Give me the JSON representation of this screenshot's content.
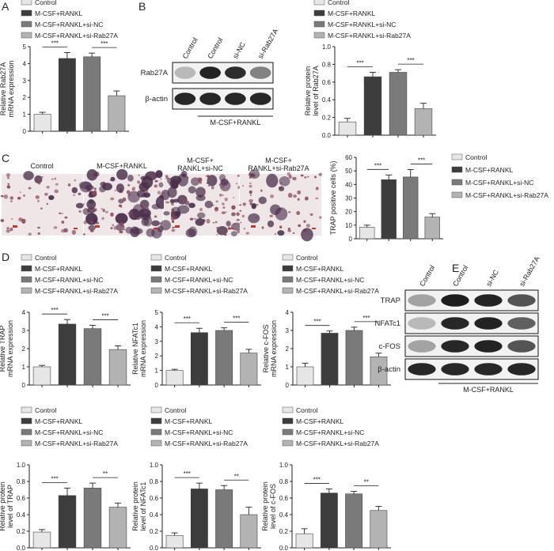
{
  "panel_letters": [
    "A",
    "B",
    "C",
    "D",
    "E"
  ],
  "series_colors": [
    "#e6e6e6",
    "#3d3d3d",
    "#7a7a7a",
    "#b3b3b3"
  ],
  "legend_labels": [
    "Control",
    "M-CSF+RANKL",
    "M-CSF+RANKL+si-NC",
    "M-CSF+RANKL+si-Rab27A"
  ],
  "blot_b": {
    "lanes": [
      "Control",
      "Control",
      "si-NC",
      "si-Rab27A"
    ],
    "rows": [
      "Rab27A",
      "β-actin"
    ],
    "group_label": "M-CSF+RANKL"
  },
  "micro_c": {
    "labels": [
      "Control",
      "M-CSF+RANKL",
      "M-CSF+\nRANKL+si-NC",
      "M-CSF+\nRANKL+si-Rab27A"
    ]
  },
  "blot_e": {
    "lanes": [
      "Control",
      "Control",
      "si-NC",
      "si-Rab27A"
    ],
    "rows": [
      "TRAP",
      "NFATc1",
      "c-FOS",
      "β-actin"
    ],
    "group_label": "M-CSF+RANKL"
  },
  "chart_data": [
    {
      "type": "bar",
      "id": "A",
      "ylabel": "Relative Rab27A\nmRNA expression",
      "ylim": [
        0,
        5
      ],
      "yticks": [
        0,
        1,
        2,
        3,
        4,
        5
      ],
      "tick_labels": [
        "0",
        "1",
        "2",
        "3",
        "4",
        "5"
      ],
      "categories": [
        "Control",
        "M-CSF+RANKL",
        "M-CSF+RANKL+si-NC",
        "M-CSF+RANKL+si-Rab27A"
      ],
      "values": [
        1.0,
        4.3,
        4.4,
        2.1
      ],
      "errors": [
        0.12,
        0.35,
        0.22,
        0.28
      ],
      "significance": [
        {
          "from": 0,
          "to": 1,
          "label": "***"
        },
        {
          "from": 2,
          "to": 3,
          "label": "***"
        }
      ]
    },
    {
      "type": "bar",
      "id": "B",
      "ylabel": "Relative protein\nlevel of Rab27A",
      "ylim": [
        0,
        1.0
      ],
      "yticks": [
        0,
        0.2,
        0.4,
        0.6,
        0.8,
        1.0
      ],
      "tick_labels": [
        "0.0",
        "0.2",
        "0.4",
        "0.6",
        "0.8",
        "1.0"
      ],
      "categories": [
        "Control",
        "M-CSF+RANKL",
        "M-CSF+RANKL+si-NC",
        "M-CSF+RANKL+si-Rab27A"
      ],
      "values": [
        0.15,
        0.66,
        0.71,
        0.3
      ],
      "errors": [
        0.04,
        0.05,
        0.03,
        0.06
      ],
      "significance": [
        {
          "from": 0,
          "to": 1,
          "label": "***"
        },
        {
          "from": 2,
          "to": 3,
          "label": "***"
        }
      ]
    },
    {
      "type": "bar",
      "id": "C",
      "ylabel": "TRAP positive cells (%)",
      "ylim": [
        0,
        60
      ],
      "yticks": [
        0,
        10,
        20,
        30,
        40,
        50,
        60
      ],
      "tick_labels": [
        "0",
        "10",
        "20",
        "30",
        "40",
        "50",
        "60"
      ],
      "categories": [
        "Control",
        "M-CSF+RANKL",
        "M-CSF+RANKL+si-NC",
        "M-CSF+RANKL+si-Rab27A"
      ],
      "values": [
        8.5,
        43.5,
        45.5,
        16.0
      ],
      "errors": [
        1.5,
        3.5,
        5.5,
        2.5
      ],
      "significance": [
        {
          "from": 0,
          "to": 1,
          "label": "***"
        },
        {
          "from": 2,
          "to": 3,
          "label": "***"
        }
      ]
    },
    {
      "type": "bar",
      "id": "D1",
      "ylabel": "Relative TRAP\nmRNA expression",
      "ylim": [
        0,
        4
      ],
      "yticks": [
        0,
        1,
        2,
        3,
        4
      ],
      "tick_labels": [
        "0",
        "1",
        "2",
        "3",
        "4"
      ],
      "categories": [
        "Control",
        "M-CSF+RANKL",
        "M-CSF+RANKL+si-NC",
        "M-CSF+RANKL+si-Rab27A"
      ],
      "values": [
        1.0,
        3.35,
        3.1,
        1.95
      ],
      "errors": [
        0.08,
        0.25,
        0.18,
        0.2
      ],
      "significance": [
        {
          "from": 0,
          "to": 1,
          "label": "***"
        },
        {
          "from": 2,
          "to": 3,
          "label": "***"
        }
      ]
    },
    {
      "type": "bar",
      "id": "D2",
      "ylabel": "Relative NFATc1\nmRNA expression",
      "ylim": [
        0,
        5
      ],
      "yticks": [
        0,
        1,
        2,
        3,
        4,
        5
      ],
      "tick_labels": [
        "0",
        "1",
        "2",
        "3",
        "4",
        "5"
      ],
      "categories": [
        "Control",
        "M-CSF+RANKL",
        "M-CSF+RANKL+si-NC",
        "M-CSF+RANKL+si-Rab27A"
      ],
      "values": [
        1.0,
        3.6,
        3.75,
        2.2
      ],
      "errors": [
        0.08,
        0.3,
        0.18,
        0.25
      ],
      "significance": [
        {
          "from": 0,
          "to": 1,
          "label": "***"
        },
        {
          "from": 2,
          "to": 3,
          "label": "***"
        }
      ]
    },
    {
      "type": "bar",
      "id": "D3",
      "ylabel": "Relative c-FOS\nmRNA expression",
      "ylim": [
        0,
        4
      ],
      "yticks": [
        0,
        1,
        2,
        3,
        4
      ],
      "tick_labels": [
        "0",
        "1",
        "2",
        "3",
        "4"
      ],
      "categories": [
        "Control",
        "M-CSF+RANKL",
        "M-CSF+RANKL+si-NC",
        "M-CSF+RANKL+si-Rab27A"
      ],
      "values": [
        1.0,
        2.85,
        3.0,
        1.55
      ],
      "errors": [
        0.2,
        0.12,
        0.18,
        0.2
      ],
      "significance": [
        {
          "from": 0,
          "to": 1,
          "label": "***"
        },
        {
          "from": 2,
          "to": 3,
          "label": "***"
        }
      ]
    },
    {
      "type": "bar",
      "id": "D4",
      "ylabel": "Relative protein\nlevel of TRAP",
      "ylim": [
        0,
        1.0
      ],
      "yticks": [
        0,
        0.2,
        0.4,
        0.6,
        0.8,
        1.0
      ],
      "tick_labels": [
        "0.0",
        "0.2",
        "0.4",
        "0.6",
        "0.8",
        "1.0"
      ],
      "categories": [
        "Control",
        "M-CSF+RANKL",
        "M-CSF+RANKL+si-NC",
        "M-CSF+RANKL+si-Rab27A"
      ],
      "values": [
        0.19,
        0.63,
        0.72,
        0.49
      ],
      "errors": [
        0.03,
        0.09,
        0.06,
        0.05
      ],
      "significance": [
        {
          "from": 0,
          "to": 1,
          "label": "***"
        },
        {
          "from": 2,
          "to": 3,
          "label": "**"
        }
      ]
    },
    {
      "type": "bar",
      "id": "D5",
      "ylabel": "Relative protein\nlevel of NFATc1",
      "ylim": [
        0,
        1.0
      ],
      "yticks": [
        0,
        0.2,
        0.4,
        0.6,
        0.8,
        1.0
      ],
      "tick_labels": [
        "0.0",
        "0.2",
        "0.4",
        "0.6",
        "0.8",
        "1.0"
      ],
      "categories": [
        "Control",
        "M-CSF+RANKL",
        "M-CSF+RANKL+si-NC",
        "M-CSF+RANKL+si-Rab27A"
      ],
      "values": [
        0.15,
        0.71,
        0.7,
        0.4
      ],
      "errors": [
        0.03,
        0.07,
        0.05,
        0.09
      ],
      "significance": [
        {
          "from": 0,
          "to": 1,
          "label": "***"
        },
        {
          "from": 2,
          "to": 3,
          "label": "**"
        }
      ]
    },
    {
      "type": "bar",
      "id": "D6",
      "ylabel": "Relative protein\nlevel of c-FOS",
      "ylim": [
        0,
        1.0
      ],
      "yticks": [
        0,
        0.2,
        0.4,
        0.6,
        0.8,
        1.0
      ],
      "tick_labels": [
        "0.0",
        "0.2",
        "0.4",
        "0.6",
        "0.8",
        "1.0"
      ],
      "categories": [
        "Control",
        "M-CSF+RANKL",
        "M-CSF+RANKL+si-NC",
        "M-CSF+RANKL+si-Rab27A"
      ],
      "values": [
        0.17,
        0.66,
        0.65,
        0.45
      ],
      "errors": [
        0.06,
        0.05,
        0.03,
        0.05
      ],
      "significance": [
        {
          "from": 0,
          "to": 1,
          "label": "***"
        },
        {
          "from": 2,
          "to": 3,
          "label": "**"
        }
      ]
    }
  ]
}
